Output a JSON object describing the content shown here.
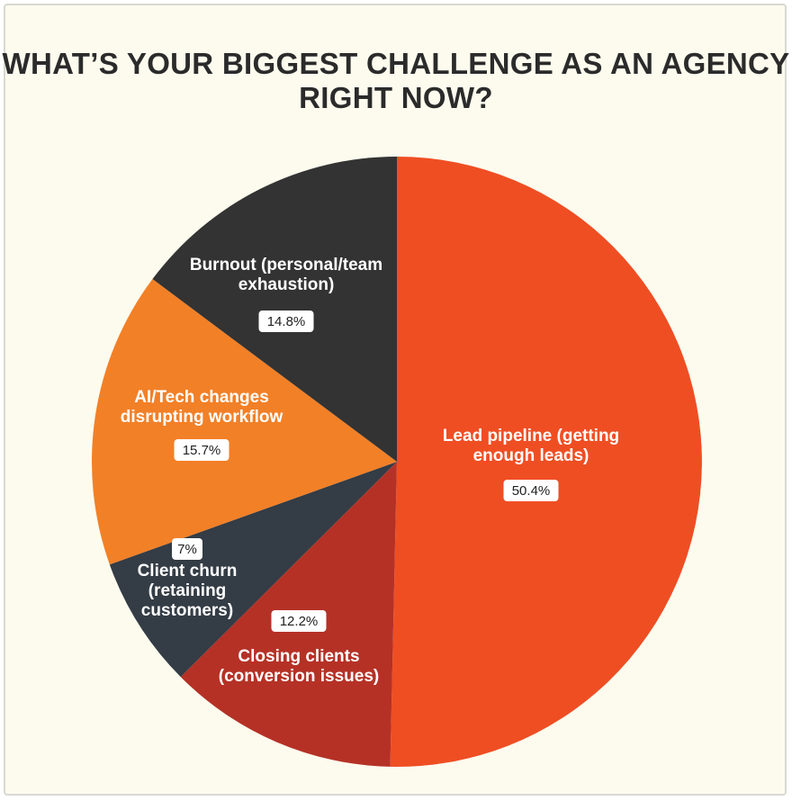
{
  "chart_data": {
    "type": "pie",
    "title_lines": [
      "WHAT’S YOUR BIGGEST CHALLENGE AS AN AGENCY",
      "RIGHT NOW?"
    ],
    "slices": [
      {
        "label_lines": [
          "Lead pipeline (getting",
          "enough leads)"
        ],
        "value": 50.4,
        "value_label": "50.4%",
        "color": "#ef4e23"
      },
      {
        "label_lines": [
          "Closing clients",
          "(conversion issues)"
        ],
        "value": 12.2,
        "value_label": "12.2%",
        "color": "#b53126"
      },
      {
        "label_lines": [
          "Client churn",
          "(retaining",
          "customers)"
        ],
        "value": 7,
        "value_label": "7%",
        "color": "#343c45"
      },
      {
        "label_lines": [
          "AI/Tech changes",
          "disrupting workflow"
        ],
        "value": 15.7,
        "value_label": "15.7%",
        "color": "#f28027"
      },
      {
        "label_lines": [
          "Burnout (personal/team",
          "exhaustion)"
        ],
        "value": 14.8,
        "value_label": "14.8%",
        "color": "#333333"
      }
    ],
    "legend": "none"
  }
}
